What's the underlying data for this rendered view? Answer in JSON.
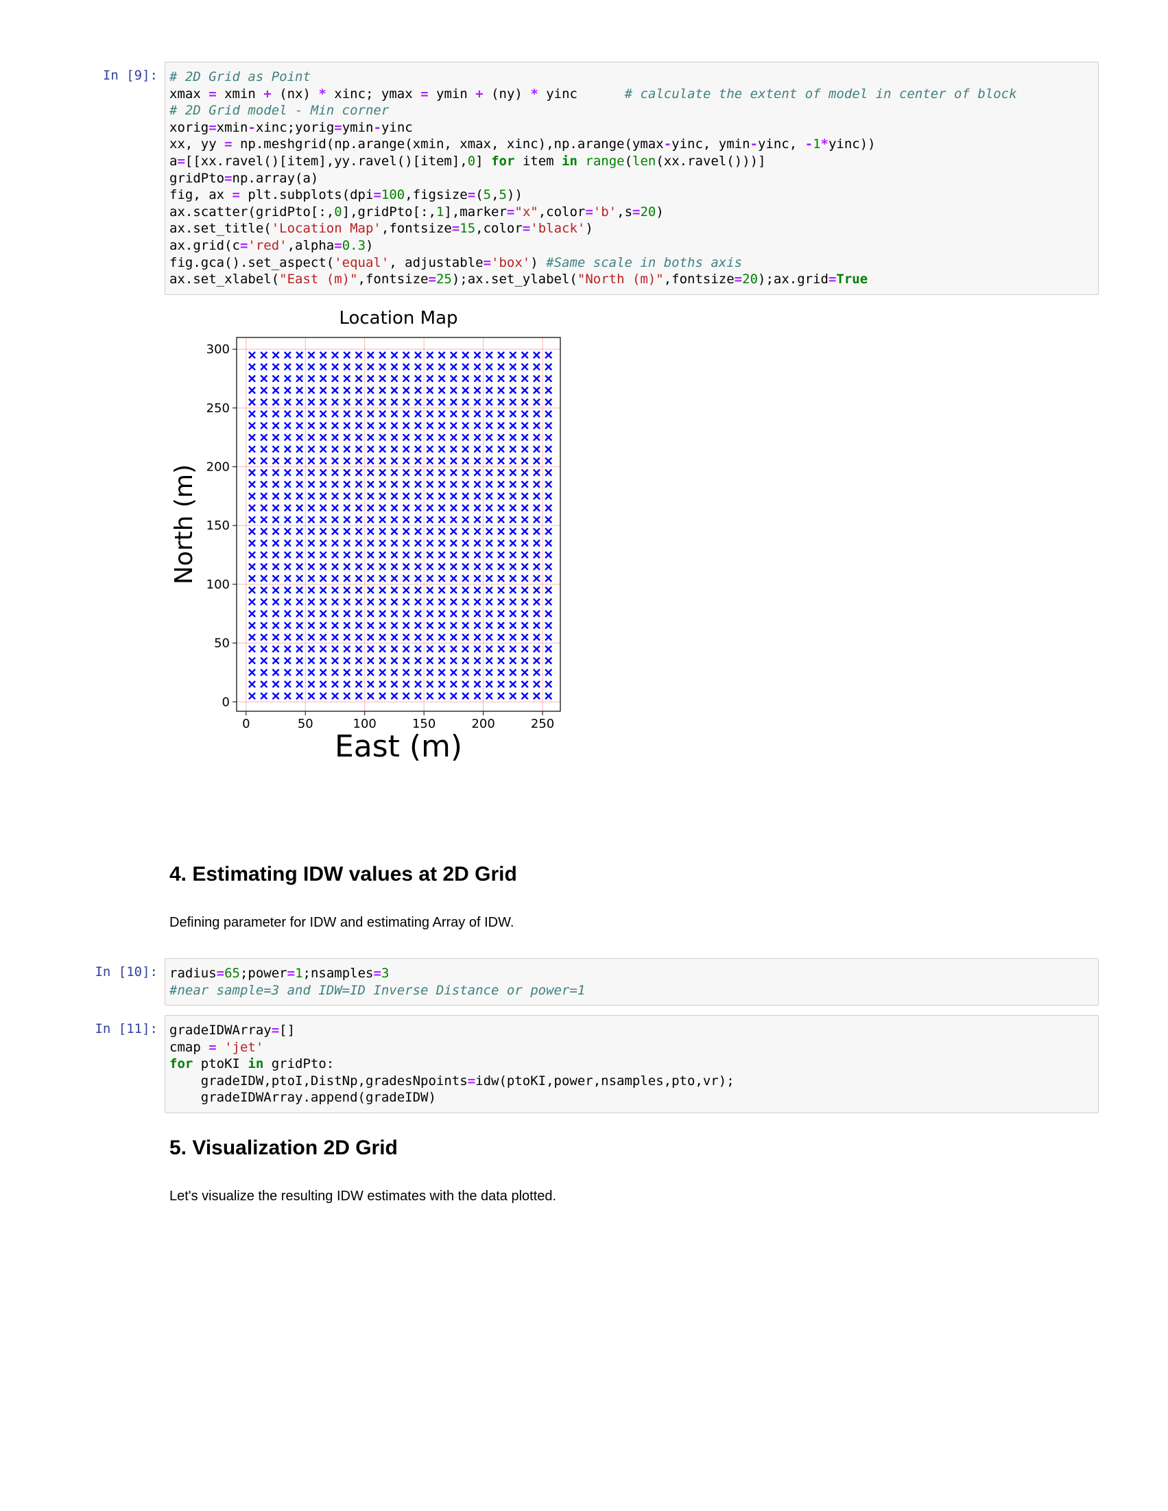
{
  "cells": [
    {
      "prompt": "In [9]:",
      "lines": [
        [
          [
            "cm",
            "# 2D Grid as Point"
          ]
        ],
        [
          [
            "",
            "xmax "
          ],
          [
            "op",
            "="
          ],
          [
            "",
            " xmin "
          ],
          [
            "op",
            "+"
          ],
          [
            "",
            " (nx) "
          ],
          [
            "op",
            "*"
          ],
          [
            "",
            " xinc; ymax "
          ],
          [
            "op",
            "="
          ],
          [
            "",
            " ymin "
          ],
          [
            "op",
            "+"
          ],
          [
            "",
            " (ny) "
          ],
          [
            "op",
            "*"
          ],
          [
            "",
            " yinc      "
          ],
          [
            "cm",
            "# calculate the extent of model in center of block"
          ]
        ],
        [
          [
            "cm",
            "# 2D Grid model - Min corner"
          ]
        ],
        [
          [
            "",
            "xorig"
          ],
          [
            "op",
            "="
          ],
          [
            "",
            "xmin"
          ],
          [
            "op",
            "-"
          ],
          [
            "",
            "xinc;yorig"
          ],
          [
            "op",
            "="
          ],
          [
            "",
            "ymin"
          ],
          [
            "op",
            "-"
          ],
          [
            "",
            "yinc"
          ]
        ],
        [
          [
            "",
            "xx, yy "
          ],
          [
            "op",
            "="
          ],
          [
            "",
            " np.meshgrid(np.arange(xmin, xmax, xinc),np.arange(ymax"
          ],
          [
            "op",
            "-"
          ],
          [
            "",
            "yinc, ymin"
          ],
          [
            "op",
            "-"
          ],
          [
            "",
            "yinc, "
          ],
          [
            "op",
            "-"
          ],
          [
            "num",
            "1"
          ],
          [
            "op",
            "*"
          ],
          [
            "",
            "yinc))"
          ]
        ],
        [
          [
            "",
            "a"
          ],
          [
            "op",
            "="
          ],
          [
            "",
            "[[xx.ravel()[item],yy.ravel()[item],"
          ],
          [
            "num",
            "0"
          ],
          [
            "",
            "] "
          ],
          [
            "kw",
            "for"
          ],
          [
            "",
            " item "
          ],
          [
            "kw",
            "in"
          ],
          [
            "",
            " "
          ],
          [
            "nb",
            "range"
          ],
          [
            "",
            "("
          ],
          [
            "nb",
            "len"
          ],
          [
            "",
            "(xx.ravel()))]"
          ]
        ],
        [
          [
            "",
            "gridPto"
          ],
          [
            "op",
            "="
          ],
          [
            "",
            "np.array(a)"
          ]
        ],
        [
          [
            "",
            "fig, ax "
          ],
          [
            "op",
            "="
          ],
          [
            "",
            " plt.subplots(dpi"
          ],
          [
            "op",
            "="
          ],
          [
            "num",
            "100"
          ],
          [
            "",
            ",figsize"
          ],
          [
            "op",
            "="
          ],
          [
            "",
            "("
          ],
          [
            "num",
            "5"
          ],
          [
            "",
            ","
          ],
          [
            "num",
            "5"
          ],
          [
            "",
            "))"
          ]
        ],
        [
          [
            "",
            "ax.scatter(gridPto[:,"
          ],
          [
            "num",
            "0"
          ],
          [
            "",
            "],gridPto[:,"
          ],
          [
            "num",
            "1"
          ],
          [
            "",
            "],marker"
          ],
          [
            "op",
            "="
          ],
          [
            "str",
            "\"x\""
          ],
          [
            "",
            ",color"
          ],
          [
            "op",
            "="
          ],
          [
            "str",
            "'b'"
          ],
          [
            "",
            ",s"
          ],
          [
            "op",
            "="
          ],
          [
            "num",
            "20"
          ],
          [
            "",
            ")"
          ]
        ],
        [
          [
            "",
            "ax.set_title("
          ],
          [
            "str",
            "'Location Map'"
          ],
          [
            "",
            ",fontsize"
          ],
          [
            "op",
            "="
          ],
          [
            "num",
            "15"
          ],
          [
            "",
            ",color"
          ],
          [
            "op",
            "="
          ],
          [
            "str",
            "'black'"
          ],
          [
            "",
            ")"
          ]
        ],
        [
          [
            "",
            "ax.grid(c"
          ],
          [
            "op",
            "="
          ],
          [
            "str",
            "'red'"
          ],
          [
            "",
            ",alpha"
          ],
          [
            "op",
            "="
          ],
          [
            "num",
            "0.3"
          ],
          [
            "",
            ")"
          ]
        ],
        [
          [
            "",
            "fig.gca().set_aspect("
          ],
          [
            "str",
            "'equal'"
          ],
          [
            "",
            ", adjustable"
          ],
          [
            "op",
            "="
          ],
          [
            "str",
            "'box'"
          ],
          [
            "",
            ") "
          ],
          [
            "cm",
            "#Same scale in boths axis"
          ]
        ],
        [
          [
            "",
            "ax.set_xlabel("
          ],
          [
            "str",
            "\"East (m)\""
          ],
          [
            "",
            ",fontsize"
          ],
          [
            "op",
            "="
          ],
          [
            "num",
            "25"
          ],
          [
            "",
            ");ax.set_ylabel("
          ],
          [
            "str",
            "\"North (m)\""
          ],
          [
            "",
            ",fontsize"
          ],
          [
            "op",
            "="
          ],
          [
            "num",
            "20"
          ],
          [
            "",
            ");ax.grid"
          ],
          [
            "op",
            "="
          ],
          [
            "kw",
            "True"
          ]
        ]
      ]
    },
    {
      "prompt": "In [10]:",
      "lines": [
        [
          [
            "",
            "radius"
          ],
          [
            "op",
            "="
          ],
          [
            "num",
            "65"
          ],
          [
            "",
            ";power"
          ],
          [
            "op",
            "="
          ],
          [
            "num",
            "1"
          ],
          [
            "",
            ";nsamples"
          ],
          [
            "op",
            "="
          ],
          [
            "num",
            "3"
          ]
        ],
        [
          [
            "cm",
            "#near sample=3 and IDW=ID Inverse Distance or power=1"
          ]
        ]
      ]
    },
    {
      "prompt": "In [11]:",
      "lines": [
        [
          [
            "",
            "gradeIDWArray"
          ],
          [
            "op",
            "="
          ],
          [
            "",
            "[]"
          ]
        ],
        [
          [
            "",
            "cmap "
          ],
          [
            "op",
            "="
          ],
          [
            "",
            " "
          ],
          [
            "str",
            "'jet'"
          ]
        ],
        [
          [
            "kw",
            "for"
          ],
          [
            "",
            " ptoKI "
          ],
          [
            "kw",
            "in"
          ],
          [
            "",
            " gridPto:"
          ]
        ],
        [
          [
            "",
            "    gradeIDW,ptoI,DistNp,gradesNpoints"
          ],
          [
            "op",
            "="
          ],
          [
            "",
            "idw(ptoKI,power,nsamples,pto,vr);"
          ]
        ],
        [
          [
            "",
            "    gradeIDWArray.append(gradeIDW)"
          ]
        ]
      ]
    }
  ],
  "markdown": {
    "heading4": "4. Estimating IDW values at 2D Grid",
    "para4": "Defining parameter for IDW and estimating Array of IDW.",
    "heading5": "5. Visualization 2D Grid",
    "para5": "Let's visualize the resulting IDW estimates with the data plotted."
  },
  "chart_data": {
    "type": "scatter",
    "title": "Location Map",
    "xlabel": "East (m)",
    "ylabel": "North (m)",
    "xlim": [
      -8,
      265
    ],
    "ylim": [
      -8,
      310
    ],
    "xticks": [
      0,
      50,
      100,
      150,
      200,
      250
    ],
    "yticks": [
      0,
      50,
      100,
      150,
      200,
      250,
      300
    ],
    "grid": true,
    "grid_color": "#ff0000",
    "grid_alpha": 0.3,
    "marker": "x",
    "marker_color": "#0000ff",
    "x_start": 5,
    "x_step": 10,
    "x_count": 26,
    "y_start": 5,
    "y_step": 10,
    "y_count": 30
  },
  "colors": {
    "prompt": "#303f9f",
    "cell_bg": "#f7f7f7",
    "cell_border": "#cfcfcf"
  }
}
